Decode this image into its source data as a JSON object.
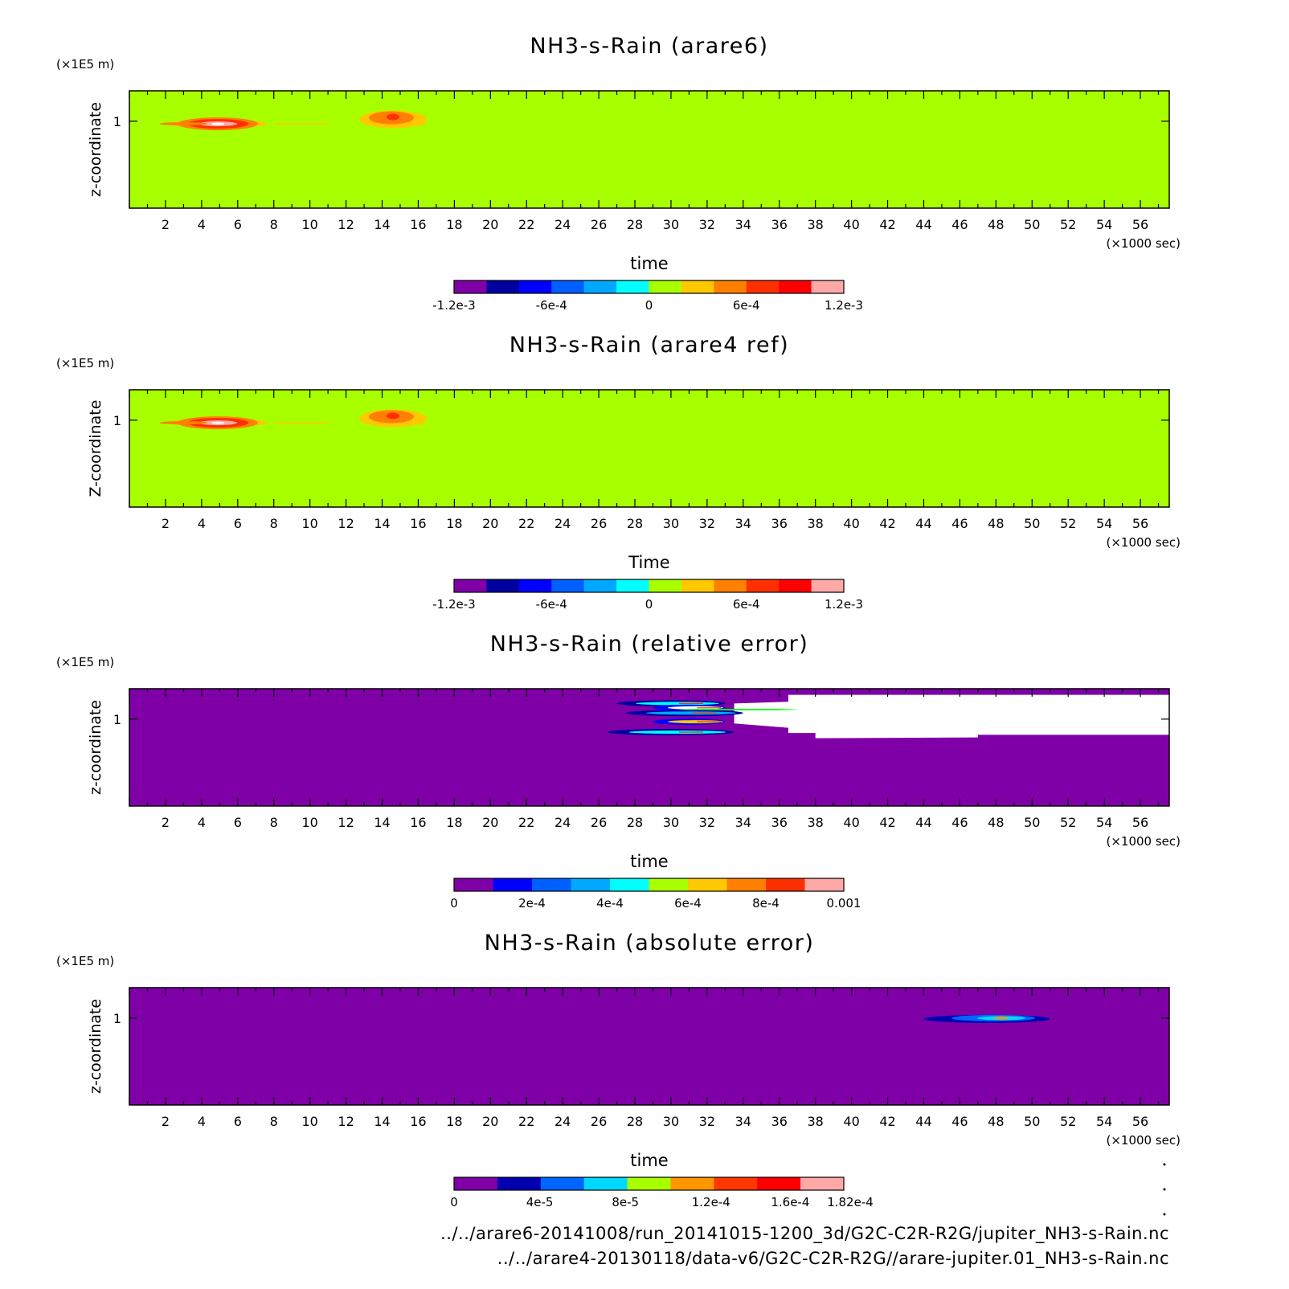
{
  "colors": {
    "rain_scale": [
      "#8000a8",
      "#0000a0",
      "#0000ff",
      "#0060ff",
      "#00a8ff",
      "#00ffff",
      "#a8ff00",
      "#ffc800",
      "#ff8000",
      "#ff3000",
      "#ff0000",
      "#ffa8a8"
    ],
    "abs_scale": [
      "#8000a8",
      "#0000b0",
      "#0064ff",
      "#00d8ff",
      "#a8ff00",
      "#ff9600",
      "#ff3800",
      "#ff0000",
      "#ffa8a8"
    ]
  },
  "footer": {
    "line1": "../../arare6-20141008/run_20141015-1200_3d/G2C-C2R-R2G/jupiter_NH3-s-Rain.nc",
    "line2": "../../arare4-20130118/data-v6/G2C-C2R-R2G//arare-jupiter.01_NH3-s-Rain.nc"
  },
  "chart_data": [
    {
      "type": "heatmap",
      "title": "NH3-s-Rain (arare6)",
      "xlabel": "time",
      "ylabel": "z-coordinate",
      "x_units": "(×1000 sec)",
      "y_units": "(×1E5 m)",
      "x_ticks": [
        2,
        4,
        6,
        8,
        10,
        12,
        14,
        16,
        18,
        20,
        22,
        24,
        26,
        28,
        30,
        32,
        34,
        36,
        38,
        40,
        42,
        44,
        46,
        48,
        50,
        52,
        54,
        56
      ],
      "y_ticks": [
        1
      ],
      "xlim": [
        0,
        57.6
      ],
      "ylim": [
        0.0,
        1.35
      ],
      "background_value": 0,
      "features": [
        {
          "x": [
            1.5,
            7.0
          ],
          "y": [
            0.92,
            1.02
          ],
          "peak_x": 4.9,
          "peak_y": 0.97,
          "max": 0.0013
        },
        {
          "x": [
            8.0,
            11.0
          ],
          "y": [
            0.96,
            0.98
          ],
          "peak_x": 9.5,
          "peak_y": 0.97,
          "max": 0.0003
        },
        {
          "x": [
            12.5,
            16.0
          ],
          "y": [
            0.94,
            1.12
          ],
          "peak_x": 14.6,
          "peak_y": 1.08,
          "max": 0.001
        }
      ],
      "colorbar": {
        "min": -0.0012,
        "max": 0.0012,
        "labels": [
          "-1.2e-3",
          "-6e-4",
          "0",
          "6e-4",
          "1.2e-3"
        ]
      }
    },
    {
      "type": "heatmap",
      "title": "NH3-s-Rain (arare4 ref)",
      "xlabel": "Time",
      "ylabel": "Z-coordinate",
      "x_units": "(×1000 sec)",
      "y_units": "(×1E5 m)",
      "x_ticks": [
        2,
        4,
        6,
        8,
        10,
        12,
        14,
        16,
        18,
        20,
        22,
        24,
        26,
        28,
        30,
        32,
        34,
        36,
        38,
        40,
        42,
        44,
        46,
        48,
        50,
        52,
        54,
        56
      ],
      "y_ticks": [
        1
      ],
      "xlim": [
        0,
        57.6
      ],
      "ylim": [
        0.0,
        1.35
      ],
      "background_value": 0,
      "features": [
        {
          "x": [
            1.5,
            7.0
          ],
          "y": [
            0.92,
            1.02
          ],
          "peak_x": 4.9,
          "peak_y": 0.97,
          "max": 0.0013
        },
        {
          "x": [
            8.0,
            11.0
          ],
          "y": [
            0.96,
            0.98
          ],
          "peak_x": 9.5,
          "peak_y": 0.97,
          "max": 0.0003
        },
        {
          "x": [
            12.5,
            16.0
          ],
          "y": [
            0.94,
            1.12
          ],
          "peak_x": 14.6,
          "peak_y": 1.08,
          "max": 0.001
        }
      ],
      "colorbar": {
        "min": -0.0012,
        "max": 0.0012,
        "labels": [
          "-1.2e-3",
          "-6e-4",
          "0",
          "6e-4",
          "1.2e-3"
        ]
      }
    },
    {
      "type": "heatmap",
      "title": "NH3-s-Rain (relative error)",
      "xlabel": "time",
      "ylabel": "z-coordinate",
      "x_units": "(×1000 sec)",
      "y_units": "(×1E5 m)",
      "x_ticks": [
        2,
        4,
        6,
        8,
        10,
        12,
        14,
        16,
        18,
        20,
        22,
        24,
        26,
        28,
        30,
        32,
        34,
        36,
        38,
        40,
        42,
        44,
        46,
        48,
        50,
        52,
        54,
        56
      ],
      "y_ticks": [
        1
      ],
      "xlim": [
        0,
        57.6
      ],
      "ylim": [
        0.0,
        1.35
      ],
      "background_value": 0,
      "undefined_region": {
        "x": [
          36.5,
          57.6
        ],
        "y": [
          0.78,
          1.28
        ]
      },
      "features": [
        {
          "x": [
            26.5,
            33.5
          ],
          "y": [
            0.8,
            1.25
          ],
          "max": 0.001
        }
      ],
      "colorbar": {
        "min": 0,
        "max": 0.001,
        "labels": [
          "0",
          "2e-4",
          "4e-4",
          "6e-4",
          "8e-4",
          "0.001"
        ]
      }
    },
    {
      "type": "heatmap",
      "title": "NH3-s-Rain (absolute error)",
      "xlabel": "time",
      "ylabel": "z-coordinate",
      "x_units": "(×1000 sec)",
      "y_units": "(×1E5 m)",
      "x_ticks": [
        2,
        4,
        6,
        8,
        10,
        12,
        14,
        16,
        18,
        20,
        22,
        24,
        26,
        28,
        30,
        32,
        34,
        36,
        38,
        40,
        42,
        44,
        46,
        48,
        50,
        52,
        54,
        56
      ],
      "y_ticks": [
        1
      ],
      "xlim": [
        0,
        57.6
      ],
      "ylim": [
        0.0,
        1.35
      ],
      "background_value": 0,
      "features": [
        {
          "x": [
            43.8,
            50.8
          ],
          "y": [
            0.93,
            1.03
          ],
          "peak_x": 48.3,
          "peak_y": 0.99,
          "max": 0.000182
        }
      ],
      "colorbar": {
        "min": 0,
        "max": 0.000182,
        "labels": [
          "0",
          "4e-5",
          "8e-5",
          "1.2e-4",
          "1.6e-4",
          "1.82e-4"
        ]
      }
    }
  ]
}
